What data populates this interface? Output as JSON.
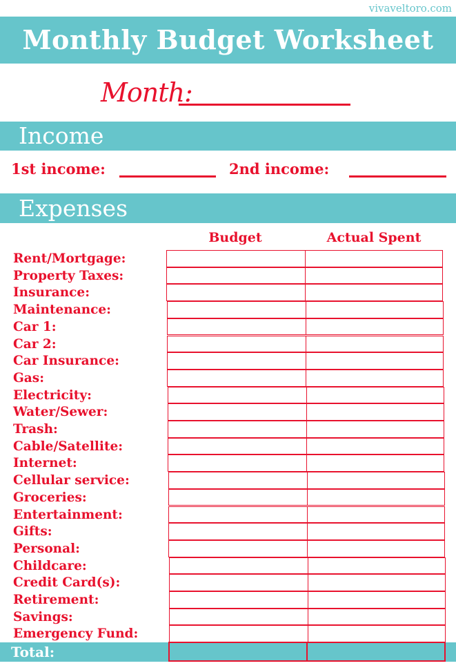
{
  "site": "vivaveltoro.com",
  "title": "Monthly Budget Worksheet",
  "month_label": "Month:",
  "income": {
    "heading": "Income",
    "first_label": "1st income:",
    "second_label": "2nd income:"
  },
  "expenses": {
    "heading": "Expenses",
    "columns": [
      "Budget",
      "Actual Spent"
    ],
    "items": [
      "Rent/Mortgage:",
      "Property Taxes:",
      "Insurance:",
      "Maintenance:",
      "Car 1:",
      "Car 2:",
      "Car Insurance:",
      "Gas:",
      "Electricity:",
      "Water/Sewer:",
      "Trash:",
      "Cable/Satellite:",
      "Internet:",
      "Cellular service:",
      "Groceries:",
      "Entertainment:",
      "Gifts:",
      "Personal:",
      "Childcare:",
      "Credit Card(s):",
      "Retirement:",
      "Savings:",
      "Emergency Fund:"
    ],
    "total_label": "Total:"
  },
  "colors": {
    "teal": "#66c5cb",
    "red": "#e8112d"
  }
}
